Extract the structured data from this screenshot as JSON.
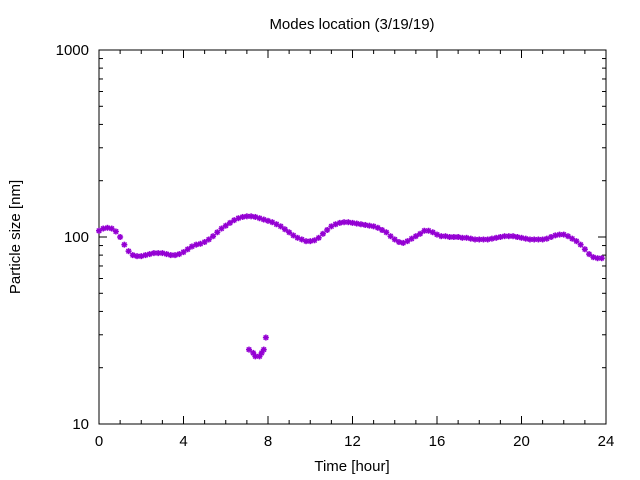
{
  "chart_data": {
    "type": "scatter",
    "title": "Modes location (3/19/19)",
    "xlabel": "Time [hour]",
    "ylabel": "Particle size [nm]",
    "xlim": [
      0,
      24
    ],
    "ylim": [
      10,
      1000
    ],
    "yscale": "log",
    "grid": false,
    "legend": "none",
    "x_ticks": [
      0,
      4,
      8,
      12,
      16,
      20,
      24
    ],
    "x_tick_labels": [
      "0",
      "4",
      "8",
      "12",
      "16",
      "20",
      "24"
    ],
    "y_ticks": [
      10,
      100,
      1000
    ],
    "y_tick_labels": [
      "10",
      "100",
      "1000"
    ],
    "marker_color": "#9400d3",
    "series": [
      {
        "values": [
          [
            0.0,
            108
          ],
          [
            0.2,
            111
          ],
          [
            0.4,
            112
          ],
          [
            0.6,
            111
          ],
          [
            0.8,
            107
          ],
          [
            1.0,
            100
          ],
          [
            1.2,
            91
          ],
          [
            1.4,
            84
          ],
          [
            1.6,
            80
          ],
          [
            1.8,
            79
          ],
          [
            2.0,
            79
          ],
          [
            2.2,
            80
          ],
          [
            2.4,
            81
          ],
          [
            2.6,
            82
          ],
          [
            2.8,
            82
          ],
          [
            3.0,
            82
          ],
          [
            3.2,
            81
          ],
          [
            3.4,
            80
          ],
          [
            3.6,
            80
          ],
          [
            3.8,
            81
          ],
          [
            4.0,
            83
          ],
          [
            4.2,
            86
          ],
          [
            4.4,
            89
          ],
          [
            4.6,
            91
          ],
          [
            4.8,
            92
          ],
          [
            5.0,
            94
          ],
          [
            5.2,
            97
          ],
          [
            5.4,
            101
          ],
          [
            5.6,
            106
          ],
          [
            5.8,
            111
          ],
          [
            6.0,
            115
          ],
          [
            6.2,
            119
          ],
          [
            6.4,
            123
          ],
          [
            6.6,
            126
          ],
          [
            6.8,
            128
          ],
          [
            7.0,
            129
          ],
          [
            7.2,
            129
          ],
          [
            7.4,
            128
          ],
          [
            7.6,
            126
          ],
          [
            7.8,
            124
          ],
          [
            8.0,
            122
          ],
          [
            8.2,
            120
          ],
          [
            8.4,
            117
          ],
          [
            8.6,
            114
          ],
          [
            8.8,
            110
          ],
          [
            9.0,
            106
          ],
          [
            9.2,
            102
          ],
          [
            9.4,
            99
          ],
          [
            9.6,
            97
          ],
          [
            9.8,
            95
          ],
          [
            10.0,
            95
          ],
          [
            10.2,
            96
          ],
          [
            10.4,
            99
          ],
          [
            10.6,
            104
          ],
          [
            10.8,
            109
          ],
          [
            11.0,
            114
          ],
          [
            11.2,
            117
          ],
          [
            11.4,
            119
          ],
          [
            11.6,
            120
          ],
          [
            11.8,
            120
          ],
          [
            12.0,
            119
          ],
          [
            12.2,
            118
          ],
          [
            12.4,
            117
          ],
          [
            12.6,
            116
          ],
          [
            12.8,
            115
          ],
          [
            13.0,
            114
          ],
          [
            13.2,
            112
          ],
          [
            13.4,
            109
          ],
          [
            13.6,
            106
          ],
          [
            13.8,
            101
          ],
          [
            14.0,
            97
          ],
          [
            14.2,
            94
          ],
          [
            14.4,
            93
          ],
          [
            14.6,
            95
          ],
          [
            14.8,
            98
          ],
          [
            15.0,
            101
          ],
          [
            15.2,
            104
          ],
          [
            15.4,
            108
          ],
          [
            15.6,
            108
          ],
          [
            15.8,
            106
          ],
          [
            16.0,
            103
          ],
          [
            16.2,
            101
          ],
          [
            16.4,
            101
          ],
          [
            16.6,
            100
          ],
          [
            16.8,
            100
          ],
          [
            17.0,
            100
          ],
          [
            17.2,
            99
          ],
          [
            17.4,
            99
          ],
          [
            17.6,
            98
          ],
          [
            17.8,
            97
          ],
          [
            18.0,
            97
          ],
          [
            18.2,
            97
          ],
          [
            18.4,
            97
          ],
          [
            18.6,
            98
          ],
          [
            18.8,
            99
          ],
          [
            19.0,
            100
          ],
          [
            19.2,
            101
          ],
          [
            19.4,
            101
          ],
          [
            19.6,
            101
          ],
          [
            19.8,
            100
          ],
          [
            20.0,
            99
          ],
          [
            20.2,
            98
          ],
          [
            20.4,
            97
          ],
          [
            20.6,
            97
          ],
          [
            20.8,
            97
          ],
          [
            21.0,
            97
          ],
          [
            21.2,
            98
          ],
          [
            21.4,
            100
          ],
          [
            21.6,
            102
          ],
          [
            21.8,
            103
          ],
          [
            22.0,
            103
          ],
          [
            22.2,
            101
          ],
          [
            22.4,
            98
          ],
          [
            22.6,
            95
          ],
          [
            22.8,
            91
          ],
          [
            23.0,
            86
          ],
          [
            23.2,
            81
          ],
          [
            23.4,
            78
          ],
          [
            23.6,
            77
          ],
          [
            23.8,
            77
          ],
          [
            7.1,
            25
          ],
          [
            7.3,
            24
          ],
          [
            7.4,
            23
          ],
          [
            7.6,
            23
          ],
          [
            7.7,
            24
          ],
          [
            7.8,
            25
          ],
          [
            7.9,
            29
          ]
        ]
      }
    ]
  }
}
